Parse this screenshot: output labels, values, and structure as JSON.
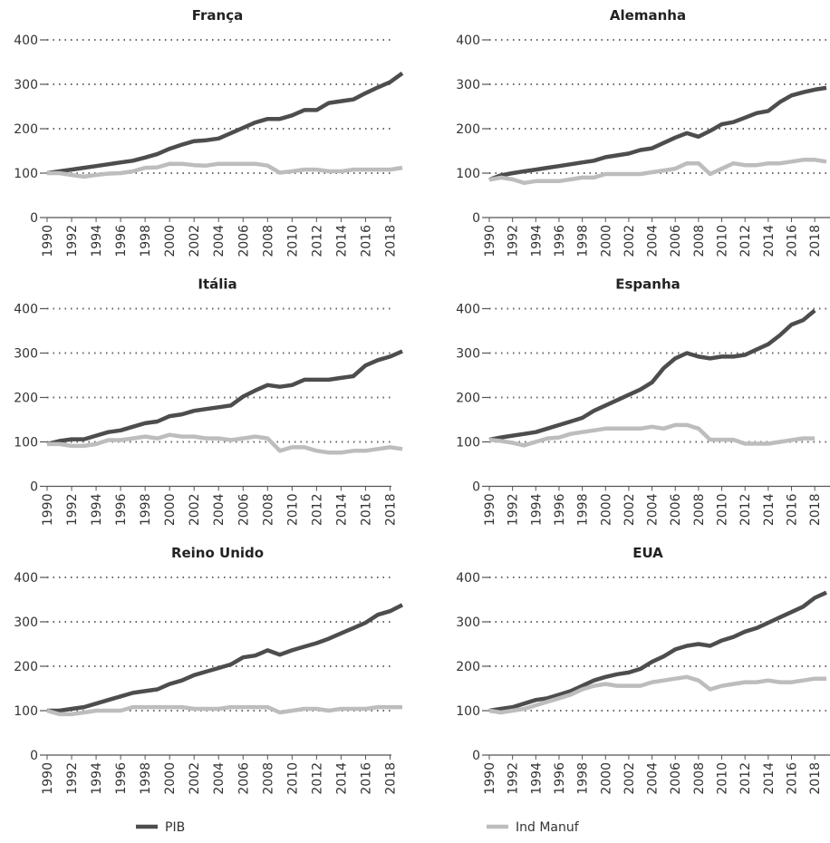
{
  "legend": {
    "position": "bottom",
    "series": [
      {
        "name": "PIB",
        "color": "#4d4d4d"
      },
      {
        "name": "Ind Manuf",
        "color": "#bdbdbd"
      }
    ]
  },
  "chart_data": [
    {
      "type": "line",
      "title": "França",
      "x": [
        1990,
        1991,
        1992,
        1993,
        1994,
        1995,
        1996,
        1997,
        1998,
        1999,
        2000,
        2001,
        2002,
        2003,
        2004,
        2005,
        2006,
        2007,
        2008,
        2009,
        2010,
        2011,
        2012,
        2013,
        2014,
        2015,
        2016,
        2017,
        2018,
        2019
      ],
      "xlim": [
        1990,
        2019
      ],
      "xticks": [
        1990,
        1992,
        1994,
        1996,
        1998,
        2000,
        2002,
        2004,
        2006,
        2008,
        2010,
        2012,
        2014,
        2016,
        2018
      ],
      "ylim": [
        0,
        400
      ],
      "yticks": [
        0,
        100,
        200,
        300,
        400
      ],
      "grid": true,
      "series": [
        {
          "values": [
            100,
            104,
            108,
            112,
            116,
            120,
            124,
            128,
            135,
            143,
            155,
            164,
            172,
            174,
            178,
            190,
            202,
            214,
            222,
            222,
            230,
            242,
            242,
            258,
            262,
            266,
            280,
            293,
            305,
            325
          ]
        },
        {
          "values": [
            100,
            100,
            96,
            92,
            96,
            99,
            100,
            104,
            112,
            113,
            121,
            121,
            118,
            117,
            121,
            121,
            121,
            121,
            117,
            101,
            104,
            108,
            108,
            104,
            104,
            108,
            108,
            108,
            108,
            112
          ]
        }
      ]
    },
    {
      "type": "line",
      "title": "Alemanha",
      "x": [
        1990,
        1991,
        1992,
        1993,
        1994,
        1995,
        1996,
        1997,
        1998,
        1999,
        2000,
        2001,
        2002,
        2003,
        2004,
        2005,
        2006,
        2007,
        2008,
        2009,
        2010,
        2011,
        2012,
        2013,
        2014,
        2015,
        2016,
        2017,
        2018,
        2019
      ],
      "xlim": [
        1990,
        2019
      ],
      "xticks": [
        1990,
        1992,
        1994,
        1996,
        1998,
        2000,
        2002,
        2004,
        2006,
        2008,
        2010,
        2012,
        2014,
        2016,
        2018
      ],
      "ylim": [
        0,
        400
      ],
      "yticks": [
        0,
        100,
        200,
        300,
        400
      ],
      "grid": true,
      "series": [
        {
          "values": [
            85,
            95,
            100,
            104,
            108,
            112,
            116,
            120,
            124,
            128,
            136,
            140,
            144,
            152,
            156,
            168,
            180,
            190,
            182,
            195,
            210,
            215,
            225,
            235,
            240,
            260,
            275,
            282,
            288,
            292
          ]
        },
        {
          "values": [
            85,
            90,
            86,
            78,
            82,
            82,
            82,
            86,
            90,
            90,
            98,
            98,
            98,
            98,
            102,
            106,
            110,
            122,
            122,
            98,
            110,
            122,
            118,
            118,
            122,
            122,
            126,
            130,
            130,
            126
          ]
        }
      ]
    },
    {
      "type": "line",
      "title": "Itália",
      "x": [
        1990,
        1991,
        1992,
        1993,
        1994,
        1995,
        1996,
        1997,
        1998,
        1999,
        2000,
        2001,
        2002,
        2003,
        2004,
        2005,
        2006,
        2007,
        2008,
        2009,
        2010,
        2011,
        2012,
        2013,
        2014,
        2015,
        2016,
        2017,
        2018,
        2019
      ],
      "xlim": [
        1990,
        2019
      ],
      "xticks": [
        1990,
        1992,
        1994,
        1996,
        1998,
        2000,
        2002,
        2004,
        2006,
        2008,
        2010,
        2012,
        2014,
        2016,
        2018
      ],
      "ylim": [
        0,
        400
      ],
      "yticks": [
        0,
        100,
        200,
        300,
        400
      ],
      "grid": true,
      "series": [
        {
          "values": [
            95,
            102,
            106,
            106,
            114,
            122,
            126,
            134,
            142,
            146,
            158,
            162,
            170,
            174,
            178,
            182,
            202,
            216,
            228,
            224,
            228,
            240,
            240,
            240,
            244,
            248,
            272,
            284,
            292,
            304
          ]
        },
        {
          "values": [
            95,
            95,
            91,
            91,
            95,
            104,
            104,
            108,
            112,
            108,
            116,
            112,
            112,
            108,
            108,
            104,
            108,
            112,
            108,
            80,
            88,
            88,
            80,
            76,
            76,
            80,
            80,
            84,
            88,
            84
          ]
        }
      ]
    },
    {
      "type": "line",
      "title": "Espanha",
      "x": [
        1990,
        1991,
        1992,
        1993,
        1994,
        1995,
        1996,
        1997,
        1998,
        1999,
        2000,
        2001,
        2002,
        2003,
        2004,
        2005,
        2006,
        2007,
        2008,
        2009,
        2010,
        2011,
        2012,
        2013,
        2014,
        2015,
        2016,
        2017,
        2018,
        2019
      ],
      "xlim": [
        1990,
        2019
      ],
      "xticks": [
        1990,
        1992,
        1994,
        1996,
        1998,
        2000,
        2002,
        2004,
        2006,
        2008,
        2010,
        2012,
        2014,
        2016,
        2018
      ],
      "ylim": [
        0,
        400
      ],
      "yticks": [
        0,
        100,
        200,
        300,
        400
      ],
      "grid": true,
      "series": [
        {
          "values": [
            105,
            110,
            114,
            118,
            122,
            130,
            138,
            146,
            154,
            170,
            182,
            194,
            206,
            218,
            234,
            266,
            288,
            300,
            292,
            288,
            292,
            292,
            296,
            308,
            320,
            340,
            364,
            374,
            396,
            null
          ]
        },
        {
          "values": [
            105,
            102,
            98,
            92,
            100,
            108,
            110,
            118,
            122,
            126,
            130,
            130,
            130,
            130,
            134,
            130,
            138,
            138,
            130,
            105,
            105,
            105,
            96,
            96,
            96,
            100,
            104,
            108,
            108,
            null
          ]
        }
      ]
    },
    {
      "type": "line",
      "title": "Reino Unido",
      "x": [
        1990,
        1991,
        1992,
        1993,
        1994,
        1995,
        1996,
        1997,
        1998,
        1999,
        2000,
        2001,
        2002,
        2003,
        2004,
        2005,
        2006,
        2007,
        2008,
        2009,
        2010,
        2011,
        2012,
        2013,
        2014,
        2015,
        2016,
        2017,
        2018,
        2019
      ],
      "xlim": [
        1990,
        2019
      ],
      "xticks": [
        1990,
        1992,
        1994,
        1996,
        1998,
        2000,
        2002,
        2004,
        2006,
        2008,
        2010,
        2012,
        2014,
        2016,
        2018
      ],
      "ylim": [
        0,
        400
      ],
      "yticks": [
        0,
        100,
        200,
        300,
        400
      ],
      "grid": true,
      "series": [
        {
          "values": [
            100,
            100,
            104,
            108,
            116,
            124,
            132,
            140,
            144,
            148,
            160,
            168,
            180,
            188,
            196,
            204,
            220,
            224,
            236,
            226,
            236,
            244,
            252,
            262,
            274,
            286,
            298,
            316,
            324,
            338
          ]
        },
        {
          "values": [
            100,
            92,
            92,
            96,
            100,
            100,
            100,
            108,
            108,
            108,
            108,
            108,
            104,
            104,
            104,
            108,
            108,
            108,
            108,
            96,
            100,
            104,
            104,
            100,
            104,
            104,
            104,
            108,
            108,
            108
          ]
        }
      ]
    },
    {
      "type": "line",
      "title": "EUA",
      "x": [
        1990,
        1991,
        1992,
        1993,
        1994,
        1995,
        1996,
        1997,
        1998,
        1999,
        2000,
        2001,
        2002,
        2003,
        2004,
        2005,
        2006,
        2007,
        2008,
        2009,
        2010,
        2011,
        2012,
        2013,
        2014,
        2015,
        2016,
        2017,
        2018,
        2019
      ],
      "xlim": [
        1990,
        2019
      ],
      "xticks": [
        1990,
        1992,
        1994,
        1996,
        1998,
        2000,
        2002,
        2004,
        2006,
        2008,
        2010,
        2012,
        2014,
        2016,
        2018
      ],
      "ylim": [
        0,
        400
      ],
      "yticks": [
        0,
        100,
        200,
        300,
        400
      ],
      "grid": true,
      "series": [
        {
          "values": [
            100,
            104,
            108,
            116,
            124,
            128,
            136,
            144,
            156,
            168,
            176,
            182,
            186,
            194,
            210,
            222,
            238,
            246,
            250,
            246,
            258,
            266,
            278,
            286,
            298,
            310,
            322,
            334,
            354,
            366
          ]
        },
        {
          "values": [
            100,
            96,
            100,
            104,
            112,
            120,
            128,
            136,
            148,
            156,
            160,
            156,
            156,
            156,
            164,
            168,
            172,
            176,
            168,
            148,
            156,
            160,
            164,
            164,
            168,
            164,
            164,
            168,
            172,
            172
          ]
        }
      ]
    }
  ]
}
